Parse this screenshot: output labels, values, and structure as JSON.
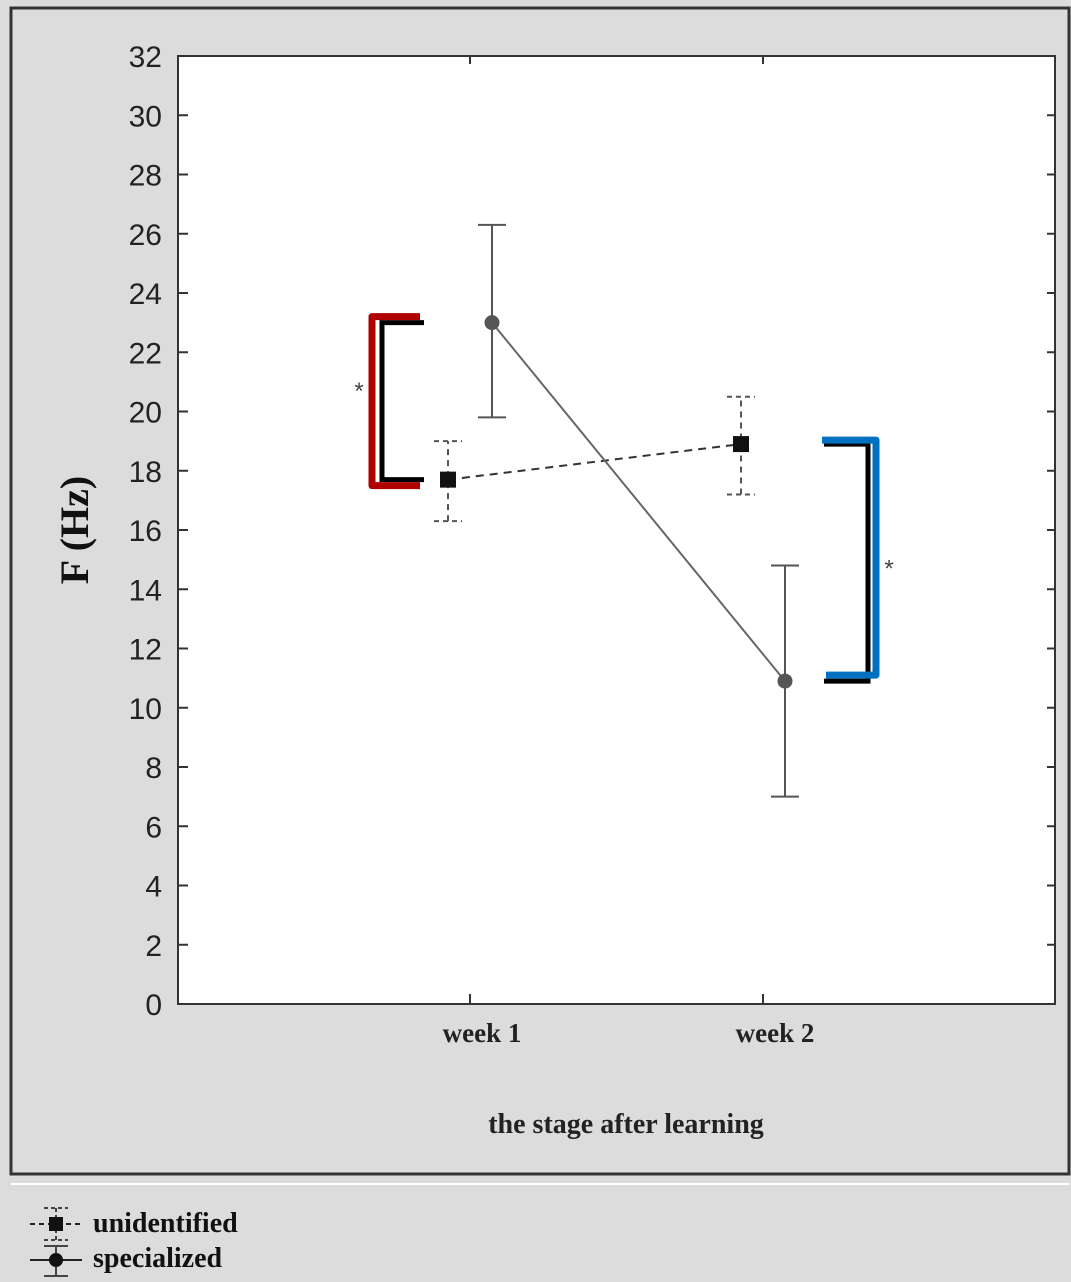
{
  "chart_data": {
    "type": "line",
    "title": "",
    "xlabel": "the stage after learning",
    "ylabel": "F (Hz)",
    "categories": [
      "week 1",
      "week 2"
    ],
    "ylim": [
      0,
      32
    ],
    "yticks": [
      "0",
      "2",
      "4",
      "6",
      "8",
      "10",
      "12",
      "14",
      "16",
      "18",
      "20",
      "22",
      "24",
      "26",
      "28",
      "30",
      "32"
    ],
    "grid": false,
    "legend_position": "bottom-left, below plot",
    "series": [
      {
        "name": "unidentified",
        "line_style": "dashed",
        "marker": "square",
        "color": "#111111",
        "values": [
          17.7,
          18.9
        ],
        "error_low": [
          16.3,
          17.2
        ],
        "error_high": [
          19.0,
          20.5
        ]
      },
      {
        "name": "specialized",
        "line_style": "solid",
        "marker": "circle",
        "color": "#555555",
        "values": [
          23.0,
          10.9
        ],
        "error_low": [
          19.8,
          7.0
        ],
        "error_high": [
          26.3,
          14.8
        ]
      }
    ],
    "annotations": [
      {
        "text": "*",
        "bracket_color": "#b00000",
        "spans": [
          17.7,
          23.0
        ]
      },
      {
        "text": "*",
        "bracket_color": "#0070c0",
        "spans": [
          10.9,
          18.9
        ]
      }
    ]
  },
  "legend": {
    "items": [
      {
        "label": "unidentified"
      },
      {
        "label": "specialized"
      }
    ]
  },
  "colors": {
    "figure_background": "#dcdcdc",
    "plot_background": "#ffffff",
    "red_bracket": "#b00000",
    "blue_bracket": "#0070c0"
  }
}
